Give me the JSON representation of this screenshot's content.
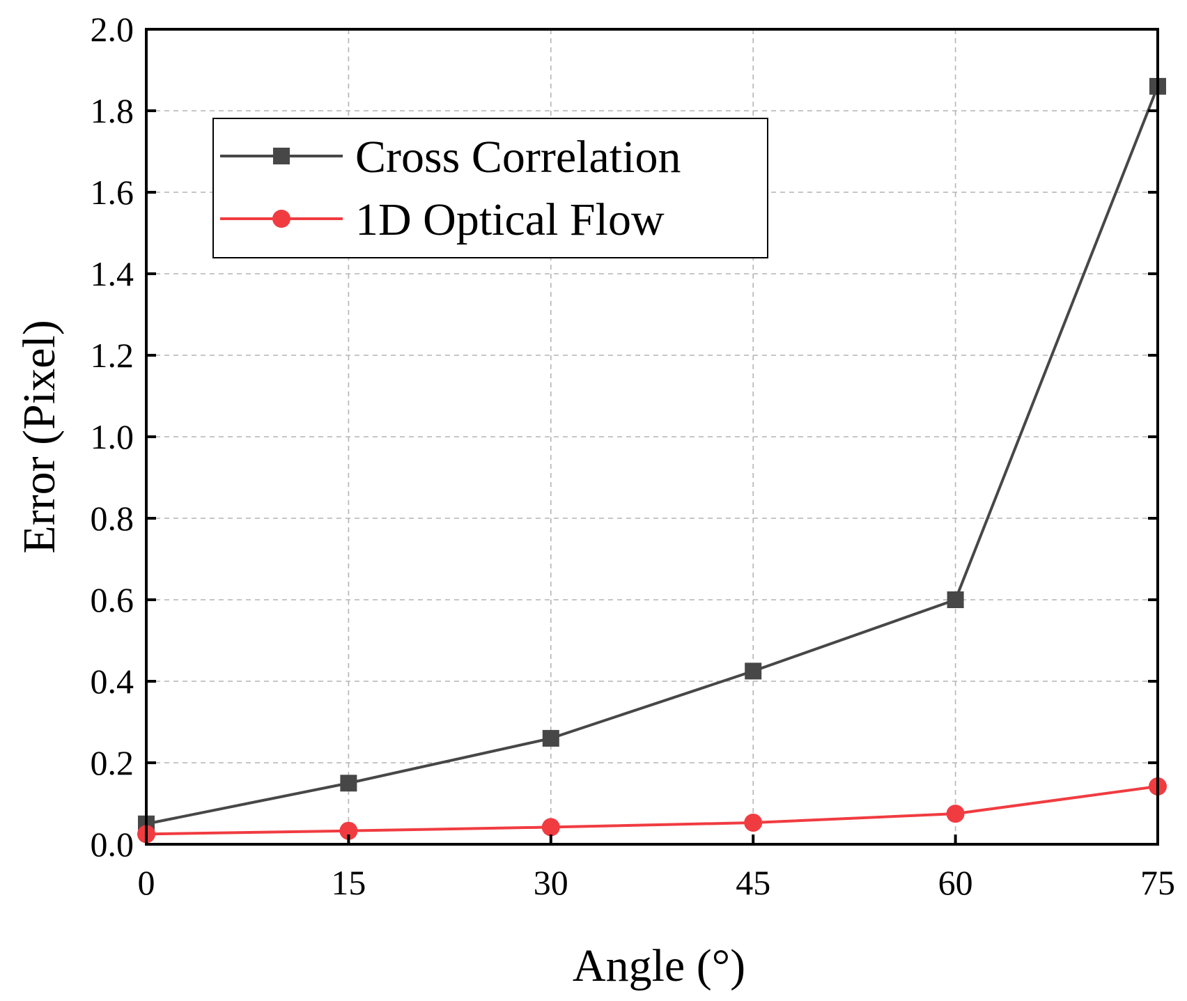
{
  "chart_data": {
    "type": "line",
    "title": "",
    "xlabel": "Angle (°)",
    "ylabel": "Error (Pixel)",
    "x": [
      0,
      15,
      30,
      45,
      60,
      75
    ],
    "xlim": [
      0,
      75
    ],
    "ylim": [
      0,
      2.0
    ],
    "xticks": [
      "0",
      "15",
      "30",
      "45",
      "60",
      "75"
    ],
    "yticks": [
      "0.0",
      "0.2",
      "0.4",
      "0.6",
      "0.8",
      "1.0",
      "1.2",
      "1.4",
      "1.6",
      "1.8",
      "2.0"
    ],
    "grid": true,
    "legend_position": "upper-left",
    "series": [
      {
        "name": "Cross Correlation",
        "values": [
          0.05,
          0.15,
          0.26,
          0.425,
          0.6,
          1.86
        ],
        "color": "#474747",
        "marker": "square"
      },
      {
        "name": "1D Optical Flow",
        "values": [
          0.025,
          0.033,
          0.042,
          0.053,
          0.075,
          0.142
        ],
        "color": "#f03c41",
        "marker": "circle"
      }
    ]
  }
}
